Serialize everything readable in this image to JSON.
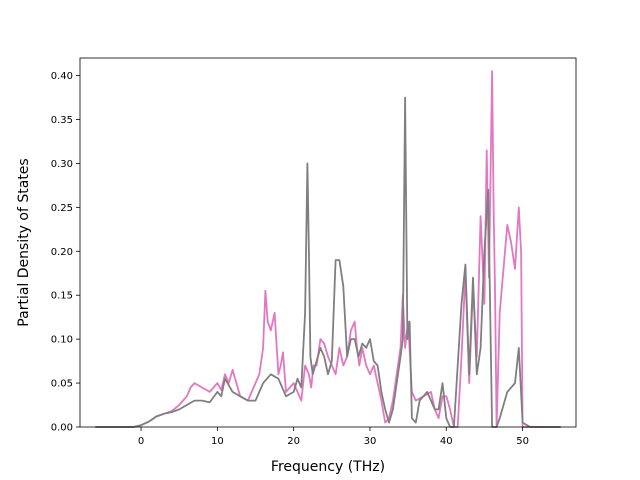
{
  "chart_data": {
    "type": "line",
    "title": "",
    "xlabel": "Frequency (THz)",
    "ylabel": "Partial Density of States",
    "xlim": [
      -8,
      57
    ],
    "ylim": [
      0,
      0.42
    ],
    "xticks": [
      0,
      10,
      20,
      30,
      40,
      50
    ],
    "yticks": [
      0.0,
      0.05,
      0.1,
      0.15,
      0.2,
      0.25,
      0.3,
      0.35,
      0.4
    ],
    "ytick_labels": [
      "0.00",
      "0.05",
      "0.10",
      "0.15",
      "0.20",
      "0.25",
      "0.30",
      "0.35",
      "0.40"
    ],
    "grid": false,
    "legend": "none",
    "series": [
      {
        "color": "#e377c2",
        "x": [
          -6,
          -1,
          0,
          1,
          2,
          3,
          4,
          5,
          6,
          6.5,
          7,
          8,
          9,
          10,
          10.5,
          11,
          11.5,
          12,
          13,
          14,
          15,
          15.5,
          16,
          16.3,
          16.6,
          17,
          17.5,
          18,
          18.3,
          18.6,
          19,
          20,
          21,
          21.5,
          22,
          22.3,
          22.6,
          23,
          23.5,
          24,
          24.5,
          25,
          25.5,
          26,
          26.5,
          27,
          27.5,
          28,
          28.3,
          28.6,
          29,
          29.5,
          30,
          30.5,
          31,
          31.5,
          32,
          32.5,
          33,
          33.5,
          34,
          34.3,
          34.6,
          35,
          35.5,
          36,
          37,
          38,
          38.5,
          39,
          39.5,
          40,
          40.5,
          41,
          41.5,
          42,
          42.5,
          43,
          43.5,
          44,
          44.5,
          45,
          45.3,
          45.6,
          46,
          46.2,
          46.4,
          46.6,
          47,
          48,
          48.5,
          49,
          49.5,
          49.8,
          50,
          51,
          55
        ],
        "y": [
          0,
          0,
          0.002,
          0.006,
          0.012,
          0.015,
          0.018,
          0.025,
          0.035,
          0.045,
          0.05,
          0.045,
          0.04,
          0.05,
          0.042,
          0.06,
          0.05,
          0.065,
          0.035,
          0.03,
          0.05,
          0.06,
          0.09,
          0.155,
          0.12,
          0.11,
          0.13,
          0.06,
          0.07,
          0.085,
          0.04,
          0.05,
          0.03,
          0.07,
          0.06,
          0.045,
          0.07,
          0.07,
          0.1,
          0.095,
          0.08,
          0.07,
          0.06,
          0.09,
          0.07,
          0.08,
          0.11,
          0.12,
          0.09,
          0.07,
          0.09,
          0.07,
          0.06,
          0.07,
          0.05,
          0.03,
          0.005,
          0.01,
          0.03,
          0.06,
          0.09,
          0.15,
          0.09,
          0.12,
          0.04,
          0.03,
          0.035,
          0.04,
          0.02,
          0.01,
          0.035,
          0.035,
          0.02,
          0.0,
          0.0,
          0.08,
          0.175,
          0.05,
          0.16,
          0.08,
          0.24,
          0.14,
          0.315,
          0.17,
          0.405,
          0.25,
          0.15,
          0.0,
          0.13,
          0.23,
          0.21,
          0.18,
          0.25,
          0.2,
          0.0,
          0.0,
          0.0
        ]
      },
      {
        "color": "#7f7f7f",
        "x": [
          -6,
          -1,
          0,
          1,
          2,
          3,
          4,
          5,
          6,
          7,
          8,
          9,
          10,
          10.5,
          11,
          12,
          13,
          14,
          15,
          16,
          17,
          18,
          19,
          20,
          20.5,
          21,
          21.5,
          21.8,
          22,
          22.2,
          22.5,
          23,
          23.5,
          24,
          24.5,
          25,
          25.5,
          26,
          26.5,
          27,
          27.5,
          28,
          28.5,
          29,
          29.5,
          30,
          30.5,
          31,
          31.5,
          32,
          32.5,
          33,
          33.5,
          34,
          34.3,
          34.6,
          34.9,
          35.2,
          35.5,
          36,
          36.5,
          37,
          37.5,
          38,
          38.5,
          39,
          39.5,
          40,
          40.5,
          41,
          42,
          42.5,
          43,
          43.5,
          44,
          44.5,
          45,
          45.5,
          46,
          46.2,
          46.4,
          46.6,
          47,
          48,
          49,
          49.5,
          50,
          51,
          55
        ],
        "y": [
          0,
          0,
          0.002,
          0.006,
          0.012,
          0.015,
          0.017,
          0.02,
          0.025,
          0.03,
          0.03,
          0.028,
          0.04,
          0.035,
          0.055,
          0.04,
          0.035,
          0.03,
          0.03,
          0.05,
          0.06,
          0.055,
          0.035,
          0.04,
          0.055,
          0.045,
          0.13,
          0.3,
          0.2,
          0.08,
          0.06,
          0.075,
          0.09,
          0.08,
          0.06,
          0.075,
          0.19,
          0.19,
          0.16,
          0.08,
          0.1,
          0.1,
          0.08,
          0.095,
          0.09,
          0.1,
          0.075,
          0.07,
          0.04,
          0.02,
          0.005,
          0.02,
          0.05,
          0.08,
          0.1,
          0.375,
          0.1,
          0.12,
          0.01,
          0.005,
          0.03,
          0.035,
          0.04,
          0.03,
          0.02,
          0.02,
          0.05,
          0.01,
          0.0,
          0.0,
          0.14,
          0.185,
          0.06,
          0.17,
          0.06,
          0.09,
          0.2,
          0.27,
          0.0,
          0.0,
          0.0,
          0.0,
          0.01,
          0.04,
          0.05,
          0.09,
          0.005,
          0.0,
          0.0
        ]
      }
    ]
  }
}
